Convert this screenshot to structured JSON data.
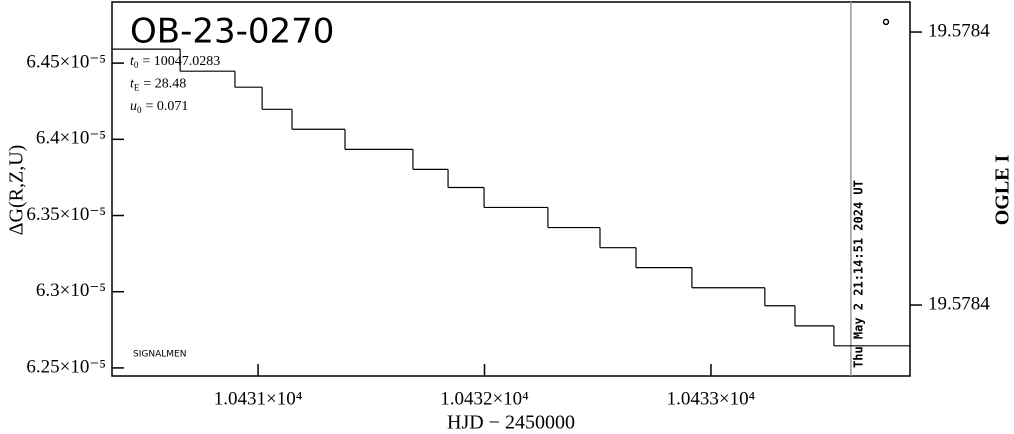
{
  "chart_data": {
    "type": "step",
    "title": "OB-23-0270",
    "parameters": [
      {
        "symbol": "t",
        "sub": "0",
        "text": "= 10047.0283"
      },
      {
        "symbol": "t",
        "sub": "E",
        "text": "= 28.48"
      },
      {
        "symbol": "u",
        "sub": "0",
        "text": "= 0.071"
      }
    ],
    "ylabel": "ΔG(R,Z,U)",
    "xlabel": "HJD − 2450000",
    "y2label": "OGLE I",
    "watermark": "SIGNALMEN",
    "annotation": {
      "text": "Thu May  2 21:14:51 2024 UT",
      "x": 10433.618,
      "color": "#999999"
    },
    "xlim": [
      10430.355,
      10433.879
    ],
    "xticks": [
      {
        "value": 10431,
        "label": "1.0431×10⁴"
      },
      {
        "value": 10432,
        "label": "1.0432×10⁴"
      },
      {
        "value": 10433,
        "label": "1.0433×10⁴"
      }
    ],
    "ylim": [
      6.2447e-05,
      6.4901e-05
    ],
    "yticks": [
      {
        "value": 6.45e-05,
        "label": "6.45×10⁻⁵"
      },
      {
        "value": 6.4e-05,
        "label": "6.4×10⁻⁵"
      },
      {
        "value": 6.35e-05,
        "label": "6.35×10⁻⁵"
      },
      {
        "value": 6.3e-05,
        "label": "6.3×10⁻⁵"
      },
      {
        "value": 6.25e-05,
        "label": "6.25×10⁻⁵"
      }
    ],
    "y2lim": [
      19.578324,
      19.578461
    ],
    "y2ticks": [
      {
        "value": 19.57845,
        "label": "19.5784"
      },
      {
        "value": 19.57835,
        "label": "19.5784"
      }
    ],
    "series": [
      {
        "color": "#000000",
        "x": [
          10430.355,
          10430.656,
          10430.898,
          10431.018,
          10431.15,
          10431.384,
          10431.684,
          10431.839,
          10431.998,
          10432.28,
          10432.51,
          10432.669,
          10432.916,
          10433.238,
          10433.371,
          10433.543
        ],
        "values": [
          6.4592e-05,
          6.4447e-05,
          6.4342e-05,
          6.4197e-05,
          6.4066e-05,
          6.3934e-05,
          6.3803e-05,
          6.3684e-05,
          6.3553e-05,
          6.3421e-05,
          6.3289e-05,
          6.3158e-05,
          6.3026e-05,
          6.2908e-05,
          6.2776e-05,
          6.2645e-05
        ]
      },
      {
        "color": "#000000",
        "axis": "y2",
        "marker": "circle",
        "x": [
          10433.773
        ],
        "values": [
          19.5784537
        ]
      }
    ]
  }
}
